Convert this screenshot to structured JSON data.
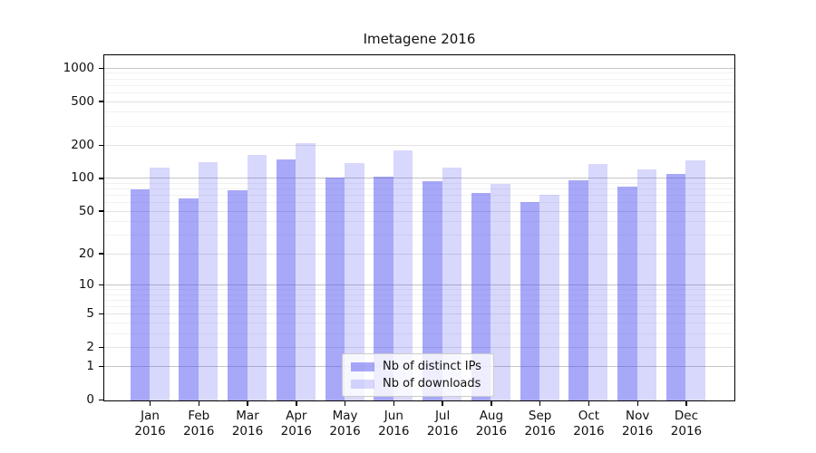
{
  "title": "Imetagene 2016",
  "chart_data": {
    "type": "bar",
    "title": "Imetagene 2016",
    "categories": [
      "Jan",
      "Feb",
      "Mar",
      "Apr",
      "May",
      "Jun",
      "Jul",
      "Aug",
      "Sep",
      "Oct",
      "Nov",
      "Dec"
    ],
    "category_sub": "2016",
    "series": [
      {
        "name": "Nb of distinct IPs",
        "color": "rgba(70,70,240,0.47)",
        "values": [
          80,
          66,
          78,
          149,
          102,
          104,
          95,
          74,
          61,
          97,
          85,
          111
        ]
      },
      {
        "name": "Nb of downloads",
        "color": "rgba(70,70,240,0.21)",
        "values": [
          127,
          141,
          165,
          210,
          139,
          183,
          127,
          90,
          72,
          138,
          122,
          148
        ]
      }
    ],
    "yscale": "symlog",
    "ylim": [
      0,
      1300
    ],
    "y_ticks": [
      0,
      1,
      2,
      5,
      10,
      20,
      50,
      100,
      200,
      500,
      1000
    ],
    "y_decade_ticks": [
      1,
      10,
      100,
      1000
    ],
    "y_minor_ticks": [
      3,
      4,
      6,
      7,
      8,
      9,
      30,
      40,
      60,
      70,
      80,
      90,
      300,
      400,
      600,
      700,
      800,
      900
    ],
    "grid": "horizontal",
    "legend_position": "inside-bottom-center",
    "background_color": "#ffffff"
  }
}
